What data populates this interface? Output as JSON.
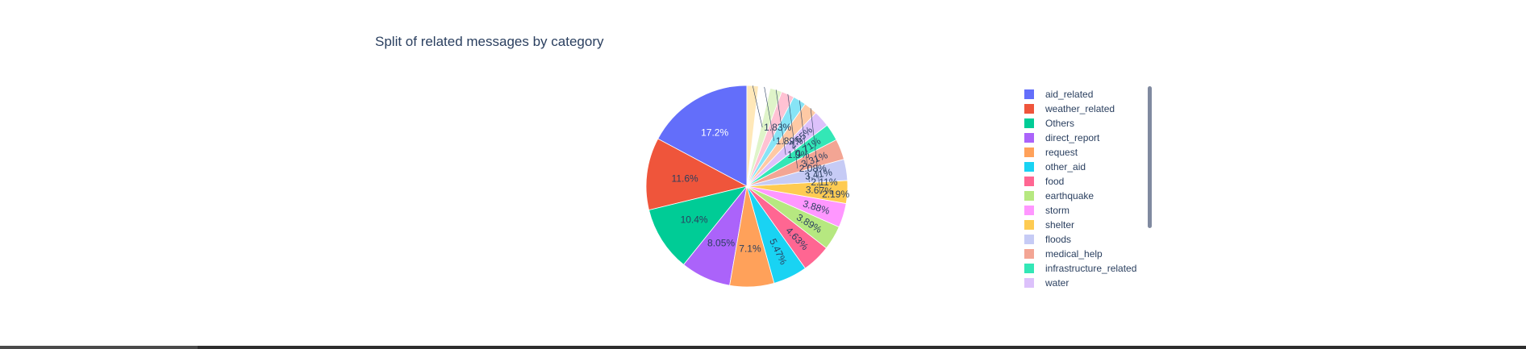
{
  "chart_data": {
    "type": "pie",
    "title": "Split of related messages by category",
    "slices": [
      {
        "label": "aid_related",
        "percent": 17.2,
        "text": "17.2%",
        "color": "#636efa"
      },
      {
        "label": "weather_related",
        "percent": 11.6,
        "text": "11.6%",
        "color": "#EF553B"
      },
      {
        "label": "Others",
        "percent": 10.4,
        "text": "10.4%",
        "color": "#00cc96"
      },
      {
        "label": "direct_report",
        "percent": 8.05,
        "text": "8.05%",
        "color": "#ab63fa"
      },
      {
        "label": "request",
        "percent": 7.1,
        "text": "7.1%",
        "color": "#FFA15A"
      },
      {
        "label": "other_aid",
        "percent": 5.47,
        "text": "5.47%",
        "color": "#19d3f3"
      },
      {
        "label": "food",
        "percent": 4.63,
        "text": "4.63%",
        "color": "#FF6692"
      },
      {
        "label": "earthquake",
        "percent": 3.89,
        "text": "3.89%",
        "color": "#B6E880"
      },
      {
        "label": "storm",
        "percent": 3.88,
        "text": "3.88%",
        "color": "#FF97FF"
      },
      {
        "label": "shelter",
        "percent": 3.67,
        "text": "3.67%",
        "color": "#FECB52"
      },
      {
        "label": "floods",
        "percent": 3.41,
        "text": "3.41%",
        "color": "#c6cbf5"
      },
      {
        "label": "medical_help",
        "percent": 3.31,
        "text": "3.31%",
        "color": "#f3a594"
      },
      {
        "label": "infrastructure_related",
        "percent": 2.71,
        "text": "2.71%",
        "color": "#33e7b6"
      },
      {
        "label": "water",
        "percent": 2.65,
        "text": "2.65%",
        "color": "#dcc1fb"
      },
      {
        "label": "",
        "percent": 2.19,
        "text": "2.19%",
        "color": "#ffc9a4"
      },
      {
        "label": "",
        "percent": 2.11,
        "text": "2.11%",
        "color": "#87e4f6"
      },
      {
        "label": "",
        "percent": 2.08,
        "text": "2.08%",
        "color": "#ffc2d3"
      },
      {
        "label": "",
        "percent": 1.9,
        "text": "1.9%",
        "color": "#dff4c9"
      },
      {
        "label": "",
        "percent": 1.89,
        "text": "1.89%",
        "color": "#ffffff"
      },
      {
        "label": "",
        "percent": 1.83,
        "text": "1.83%",
        "color": "#ffe8b9"
      }
    ],
    "legend_placement": "right",
    "legend_visible_count": 14,
    "legend_scrollable": true
  }
}
